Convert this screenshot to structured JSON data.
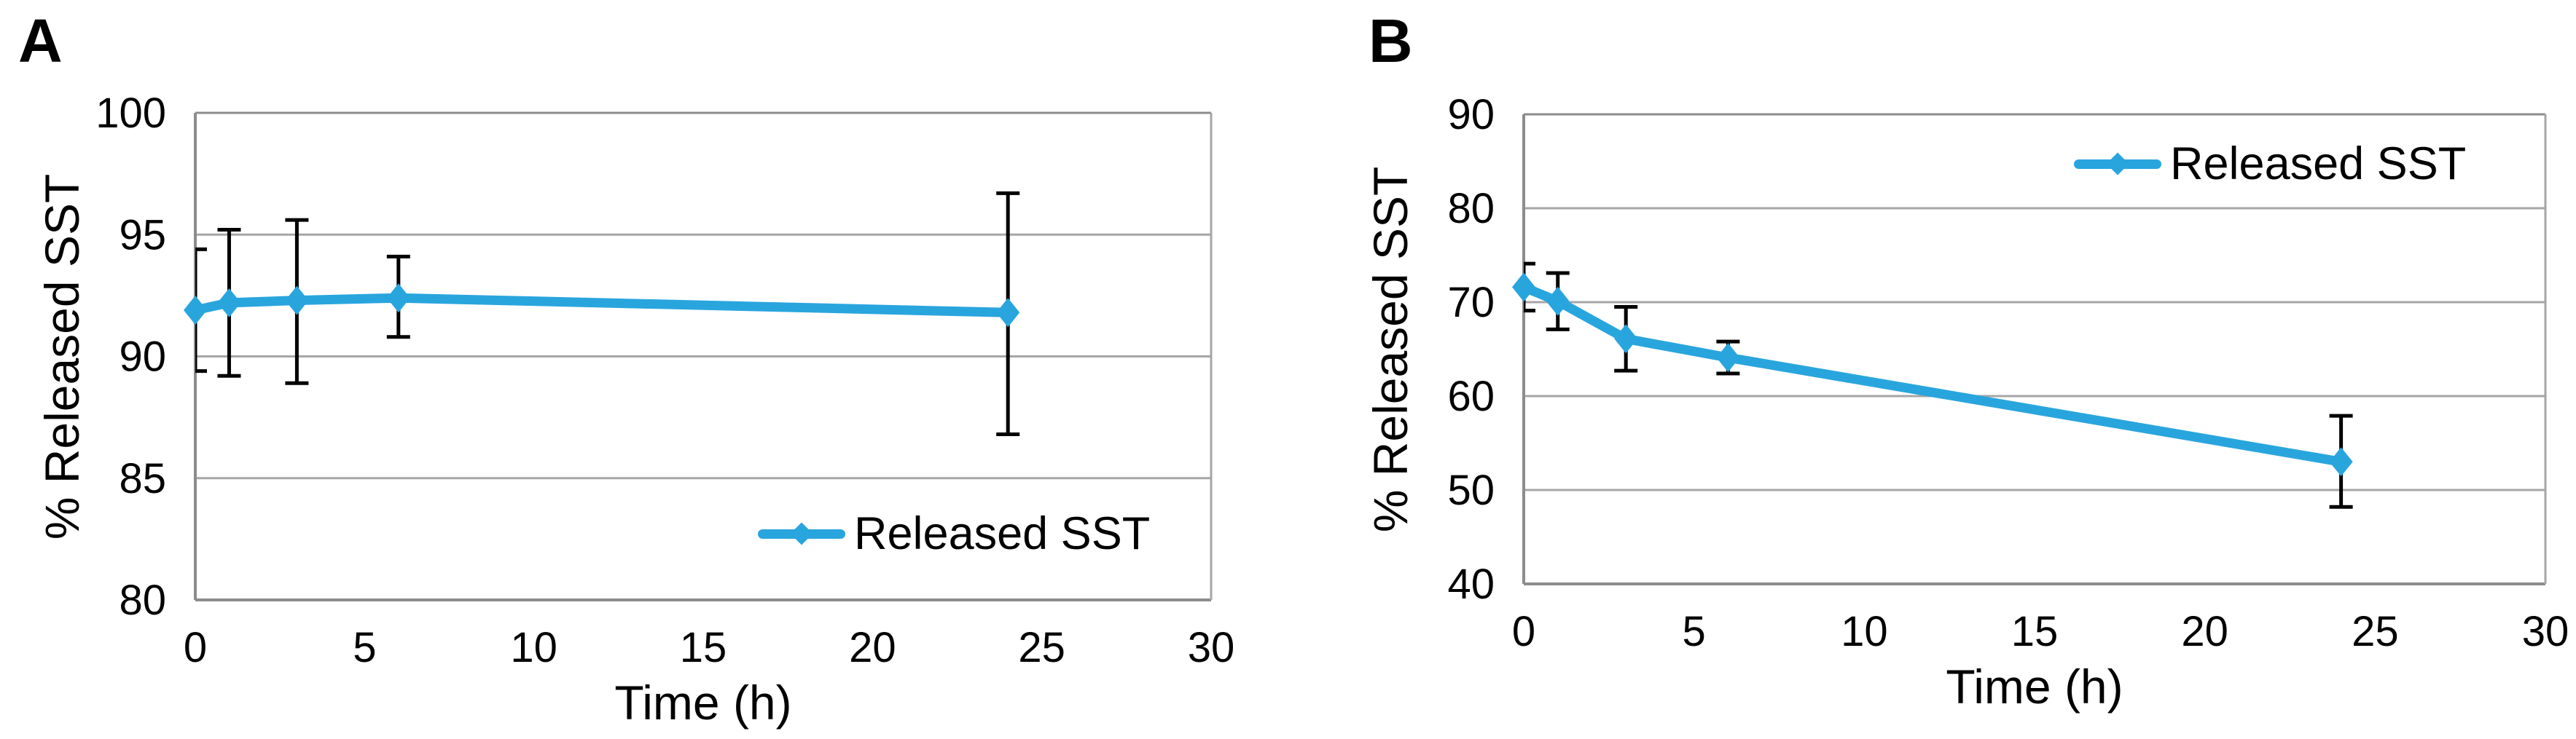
{
  "figure": {
    "background": "#FFFFFF",
    "panels": [
      "A",
      "B"
    ]
  },
  "colors": {
    "series_blue": "#29A5DE",
    "gridline_gray": "#A6A6A6",
    "axis_gray": "#8C8C8C",
    "error_bar_black": "#000000",
    "text_black": "#000000"
  },
  "chart_data": [
    {
      "type": "line",
      "panel_label": "A",
      "xlabel": "Time (h)",
      "ylabel": "% Released SST",
      "legend": {
        "label": "Released SST",
        "position": "inside-bottom-right"
      },
      "xlim": [
        0,
        30
      ],
      "ylim": [
        80,
        100
      ],
      "xticks": [
        0,
        5,
        10,
        15,
        20,
        25,
        30
      ],
      "yticks": [
        80,
        85,
        90,
        95,
        100
      ],
      "grid": true,
      "series": [
        {
          "name": "Released SST",
          "color": "#29A5DE",
          "marker": "diamond",
          "x": [
            0,
            1,
            3,
            6,
            24
          ],
          "y": [
            91.9,
            92.2,
            92.3,
            92.4,
            91.8
          ],
          "err_lo": [
            89.4,
            89.2,
            88.9,
            90.8,
            86.8
          ],
          "err_hi": [
            94.4,
            95.2,
            95.6,
            94.1,
            96.7
          ]
        }
      ]
    },
    {
      "type": "line",
      "panel_label": "B",
      "xlabel": "Time (h)",
      "ylabel": "% Released SST",
      "legend": {
        "label": "Released SST",
        "position": "inside-top-right"
      },
      "xlim": [
        0,
        30
      ],
      "ylim": [
        40,
        90
      ],
      "xticks": [
        0,
        5,
        10,
        15,
        20,
        25,
        30
      ],
      "yticks": [
        40,
        50,
        60,
        70,
        80,
        90
      ],
      "grid": true,
      "series": [
        {
          "name": "Released SST",
          "color": "#29A5DE",
          "marker": "diamond",
          "x": [
            0,
            1,
            3,
            6,
            24
          ],
          "y": [
            71.6,
            70.1,
            66.1,
            64.1,
            53.0
          ],
          "err_lo": [
            69.1,
            67.1,
            62.7,
            62.4,
            48.2
          ],
          "err_hi": [
            74.1,
            73.1,
            69.5,
            65.8,
            57.9
          ]
        }
      ]
    }
  ]
}
